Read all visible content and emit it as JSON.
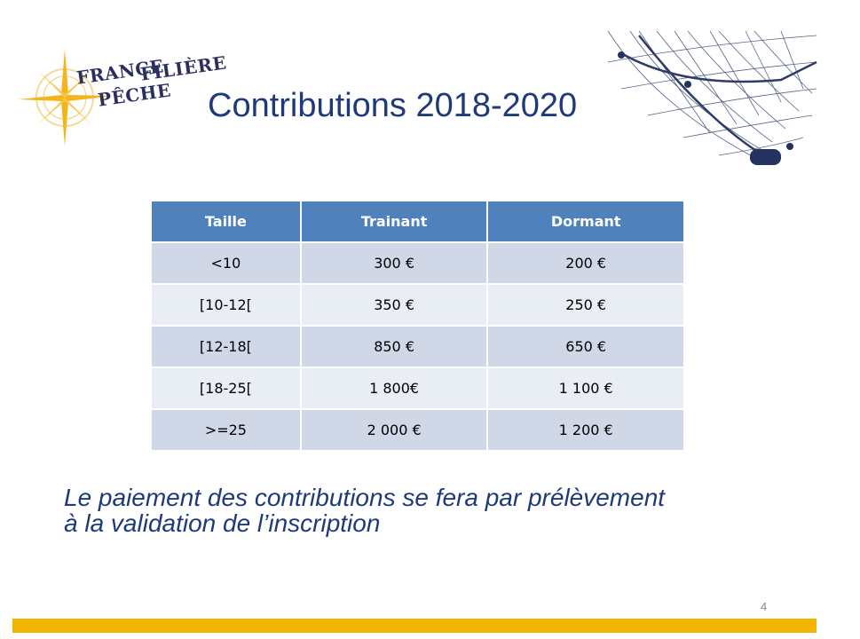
{
  "logo": {
    "line1": "FRANCE",
    "line2": "FILIÈRE",
    "line3": "PÊCHE"
  },
  "title": "Contributions 2018-2020",
  "table": {
    "headers": [
      "Taille",
      "Trainant",
      "Dormant"
    ],
    "rows": [
      [
        "<10",
        "300 €",
        "200 €"
      ],
      [
        "[10-12[",
        "350 €",
        "250 €"
      ],
      [
        "[12-18[",
        "850 €",
        "650 €"
      ],
      [
        "[18-25[",
        "1 800€",
        "1 100 €"
      ],
      [
        ">=25",
        "2 000 €",
        "1 200 €"
      ]
    ]
  },
  "note": {
    "line1": "Le paiement des contributions se fera par prélèvement",
    "line2": "à la validation de l’inscription"
  },
  "page_number": "4",
  "colors": {
    "header": "#4f81bd",
    "row_dark": "#d0d8e8",
    "row_light": "#e9edf4",
    "title": "#1f3a7a",
    "footer_bar": "#f2b400"
  }
}
